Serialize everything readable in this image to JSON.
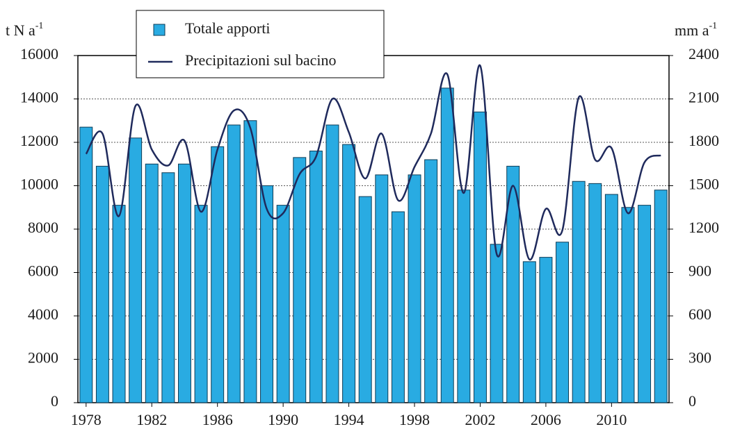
{
  "chart_data": {
    "type": "bar-line",
    "y_label": "t N a",
    "y_label_sup": "-1",
    "y2_label": "mm a",
    "y2_label_sup": "-1",
    "categories": [
      "1978",
      null,
      null,
      null,
      "1982",
      null,
      null,
      null,
      "1986",
      null,
      null,
      null,
      "1990",
      null,
      null,
      null,
      "1994",
      null,
      null,
      null,
      "1998",
      null,
      null,
      null,
      "2002",
      null,
      null,
      null,
      "2006",
      null,
      null,
      null,
      "2010",
      null,
      null,
      null
    ],
    "series": [
      {
        "name": "Totale apporti",
        "type": "bar",
        "color": "#29abe2",
        "values": [
          12700,
          10900,
          9100,
          12200,
          11000,
          10600,
          11000,
          9100,
          11800,
          12800,
          13000,
          10000,
          9100,
          11300,
          11600,
          12800,
          11900,
          9500,
          10500,
          8800,
          10500,
          11200,
          14500,
          9800,
          13400,
          7300,
          10900,
          6500,
          6700,
          7400,
          10200,
          10100,
          9600,
          9000,
          9100,
          9800
        ]
      },
      {
        "name": "Precipitazioni sul bacino",
        "type": "line",
        "axis": "y2",
        "color": "#1f2a5c",
        "values": [
          1720,
          1860,
          1290,
          2050,
          1750,
          1640,
          1810,
          1320,
          1750,
          2020,
          1900,
          1340,
          1310,
          1580,
          1700,
          2100,
          1870,
          1550,
          1860,
          1400,
          1630,
          1860,
          2270,
          1450,
          2330,
          1030,
          1500,
          990,
          1340,
          1190,
          2110,
          1680,
          1760,
          1310,
          1660,
          1710
        ]
      }
    ],
    "ylim": [
      0,
      16000
    ],
    "yticks": [
      0,
      2000,
      4000,
      6000,
      8000,
      10000,
      12000,
      14000,
      16000
    ],
    "y2lim": [
      0,
      2400
    ],
    "y2ticks": [
      0,
      300,
      600,
      900,
      1200,
      1500,
      1800,
      2100,
      2400
    ],
    "grid": true,
    "legend": "top-left"
  }
}
